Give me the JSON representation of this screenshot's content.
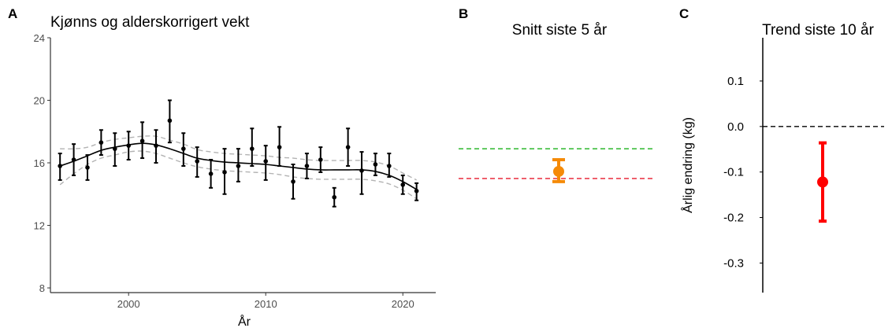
{
  "chart_data": [
    {
      "panel": "A",
      "type": "scatter",
      "title": "Kjønns og alderskorrigert vekt",
      "xlabel": "År",
      "ylabel": "",
      "xlim": [
        1994.3,
        2022.4
      ],
      "ylim": [
        7.7,
        24
      ],
      "xticks": [
        2000,
        2010,
        2020
      ],
      "yticks": [
        8,
        12,
        16,
        20,
        24
      ],
      "grid": false,
      "points": [
        {
          "x": 1995,
          "y": 15.8,
          "lo": 14.9,
          "hi": 16.6
        },
        {
          "x": 1996,
          "y": 16.2,
          "lo": 15.2,
          "hi": 17.2
        },
        {
          "x": 1997,
          "y": 15.7,
          "lo": 14.9,
          "hi": 16.5
        },
        {
          "x": 1998,
          "y": 17.3,
          "lo": 16.5,
          "hi": 18.1
        },
        {
          "x": 1999,
          "y": 16.9,
          "lo": 15.8,
          "hi": 17.9
        },
        {
          "x": 2000,
          "y": 17.1,
          "lo": 16.2,
          "hi": 18.0
        },
        {
          "x": 2001,
          "y": 17.4,
          "lo": 16.3,
          "hi": 18.6
        },
        {
          "x": 2002,
          "y": 17.1,
          "lo": 16.0,
          "hi": 18.1
        },
        {
          "x": 2003,
          "y": 18.7,
          "lo": 17.3,
          "hi": 20.0
        },
        {
          "x": 2004,
          "y": 16.9,
          "lo": 15.8,
          "hi": 17.9
        },
        {
          "x": 2005,
          "y": 16.1,
          "lo": 15.1,
          "hi": 17.0
        },
        {
          "x": 2006,
          "y": 15.3,
          "lo": 14.4,
          "hi": 16.2
        },
        {
          "x": 2007,
          "y": 15.4,
          "lo": 14.0,
          "hi": 16.9
        },
        {
          "x": 2008,
          "y": 15.8,
          "lo": 14.8,
          "hi": 16.9
        },
        {
          "x": 2009,
          "y": 16.9,
          "lo": 15.8,
          "hi": 18.2
        },
        {
          "x": 2010,
          "y": 16.1,
          "lo": 14.9,
          "hi": 17.1
        },
        {
          "x": 2011,
          "y": 17.0,
          "lo": 15.8,
          "hi": 18.3
        },
        {
          "x": 2012,
          "y": 14.8,
          "lo": 13.7,
          "hi": 15.9
        },
        {
          "x": 2013,
          "y": 15.8,
          "lo": 15.0,
          "hi": 16.6
        },
        {
          "x": 2014,
          "y": 16.2,
          "lo": 15.4,
          "hi": 17.0
        },
        {
          "x": 2015,
          "y": 13.8,
          "lo": 13.2,
          "hi": 14.4
        },
        {
          "x": 2016,
          "y": 17.0,
          "lo": 15.8,
          "hi": 18.2
        },
        {
          "x": 2017,
          "y": 15.5,
          "lo": 14.0,
          "hi": 16.7
        },
        {
          "x": 2018,
          "y": 15.9,
          "lo": 15.2,
          "hi": 16.6
        },
        {
          "x": 2019,
          "y": 15.8,
          "lo": 15.1,
          "hi": 16.6
        },
        {
          "x": 2020,
          "y": 14.6,
          "lo": 14.0,
          "hi": 15.2
        },
        {
          "x": 2021,
          "y": 14.2,
          "lo": 13.6,
          "hi": 14.7
        }
      ],
      "trend": {
        "x": [
          1995,
          1996,
          1997,
          1998,
          1999,
          2000,
          2001,
          2002,
          2003,
          2004,
          2005,
          2006,
          2007,
          2008,
          2009,
          2010,
          2011,
          2012,
          2013,
          2014,
          2015,
          2016,
          2017,
          2018,
          2019,
          2020,
          2021
        ],
        "y": [
          15.8,
          16.1,
          16.45,
          16.8,
          17.0,
          17.15,
          17.25,
          17.15,
          16.9,
          16.6,
          16.3,
          16.15,
          16.05,
          16.0,
          15.95,
          15.9,
          15.8,
          15.7,
          15.6,
          15.55,
          15.55,
          15.55,
          15.55,
          15.45,
          15.2,
          14.8,
          14.3
        ],
        "lower": [
          14.6,
          15.3,
          15.9,
          16.3,
          16.5,
          16.7,
          16.75,
          16.6,
          16.3,
          16.0,
          15.75,
          15.6,
          15.5,
          15.45,
          15.4,
          15.35,
          15.25,
          15.1,
          15.0,
          14.95,
          14.95,
          14.95,
          14.95,
          14.85,
          14.65,
          14.25,
          13.7
        ],
        "upper": [
          16.9,
          16.9,
          17.0,
          17.3,
          17.5,
          17.6,
          17.7,
          17.7,
          17.45,
          17.2,
          16.85,
          16.7,
          16.6,
          16.55,
          16.5,
          16.45,
          16.35,
          16.3,
          16.2,
          16.15,
          16.15,
          16.15,
          16.15,
          16.05,
          15.8,
          15.35,
          14.9
        ]
      }
    },
    {
      "panel": "B",
      "type": "scatter",
      "title": "Snitt siste 5 år",
      "point": {
        "y": 15.45,
        "lo": 14.8,
        "hi": 16.2
      },
      "reference_lines": [
        {
          "y": 16.9,
          "color": "#2db82d"
        },
        {
          "y": 15.0,
          "color": "#e8192c"
        }
      ],
      "ylim": [
        7.7,
        24
      ],
      "point_color": "#f58a07"
    },
    {
      "panel": "C",
      "type": "scatter",
      "title": "Trend siste 10 år",
      "ylabel": "Årlig endring (kg)",
      "xlabel": "",
      "ylim": [
        -0.365,
        0.195
      ],
      "yticks": [
        0.1,
        0.0,
        -0.1,
        -0.2,
        -0.3
      ],
      "ytick_labels": [
        "0.1",
        "0.0",
        "-0.1",
        "-0.2",
        "-0.3"
      ],
      "point": {
        "y": -0.122,
        "lo": -0.208,
        "hi": -0.036
      },
      "reference_line": 0.0,
      "point_color": "#ff0000"
    }
  ]
}
